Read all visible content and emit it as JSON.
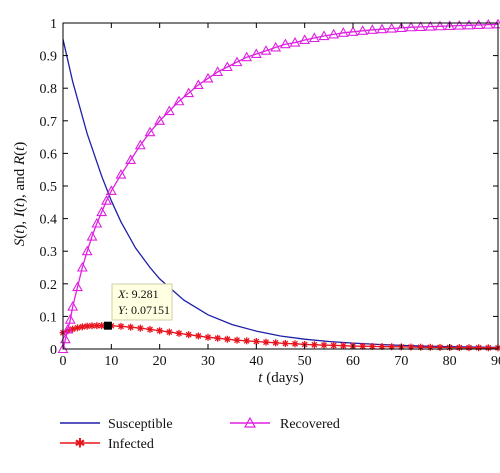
{
  "chart_data": {
    "type": "line",
    "xlabel": {
      "var": "t",
      "rest": " (days)"
    },
    "ylabel": {
      "parts": [
        "S",
        "(",
        "t",
        "), ",
        "I",
        "(",
        "t",
        "), and ",
        "R",
        "(",
        "t",
        ")"
      ]
    },
    "xlim": [
      0,
      90
    ],
    "ylim": [
      0,
      1
    ],
    "xticks": [
      0,
      10,
      20,
      30,
      40,
      50,
      60,
      70,
      80,
      90
    ],
    "yticks": [
      0,
      0.1,
      0.2,
      0.3,
      0.4,
      0.5,
      0.6,
      0.7,
      0.8,
      0.9,
      1
    ],
    "ytick_labels": [
      "0",
      "0.1",
      "0.2",
      "0.3",
      "0.4",
      "0.5",
      "0.6",
      "0.7",
      "0.8",
      "0.9",
      "1"
    ],
    "grid": false,
    "legend_position": "bottom, below plot",
    "series": [
      {
        "name": "Susceptible",
        "color": "#1f1fa8",
        "marker": "none",
        "x": [
          0,
          2,
          5,
          8,
          10,
          12,
          15,
          18,
          20,
          25,
          30,
          35,
          40,
          45,
          50,
          55,
          60,
          65,
          70,
          75,
          80,
          85,
          90
        ],
        "y": [
          0.95,
          0.82,
          0.66,
          0.53,
          0.455,
          0.39,
          0.31,
          0.25,
          0.215,
          0.15,
          0.105,
          0.075,
          0.055,
          0.04,
          0.03,
          0.023,
          0.018,
          0.014,
          0.011,
          0.009,
          0.007,
          0.006,
          0.005
        ]
      },
      {
        "name": "Infected",
        "color": "#e8141e",
        "marker": "star",
        "x": [
          0,
          1,
          2,
          3,
          4,
          5,
          6,
          7,
          8,
          9.281,
          10,
          12,
          14,
          16,
          18,
          20,
          22,
          24,
          26,
          28,
          30,
          32,
          34,
          36,
          38,
          40,
          42,
          44,
          46,
          48,
          50,
          52,
          54,
          56,
          58,
          60,
          62,
          64,
          66,
          68,
          70,
          72,
          74,
          76,
          78,
          80,
          82,
          84,
          86,
          88,
          90
        ],
        "y": [
          0.05,
          0.056,
          0.061,
          0.065,
          0.068,
          0.07,
          0.0712,
          0.0716,
          0.0716,
          0.07151,
          0.071,
          0.0695,
          0.067,
          0.064,
          0.06,
          0.056,
          0.052,
          0.048,
          0.044,
          0.04,
          0.036,
          0.033,
          0.03,
          0.027,
          0.025,
          0.023,
          0.021,
          0.019,
          0.017,
          0.016,
          0.014,
          0.013,
          0.012,
          0.011,
          0.01,
          0.009,
          0.0085,
          0.008,
          0.0075,
          0.007,
          0.0065,
          0.006,
          0.0056,
          0.0053,
          0.005,
          0.0047,
          0.0044,
          0.0041,
          0.0039,
          0.0037,
          0.0035
        ]
      },
      {
        "name": "Recovered",
        "color": "#e020e0",
        "marker": "triangle",
        "x": [
          0,
          0.5,
          1,
          1.5,
          2,
          3,
          4,
          5,
          6,
          7,
          8,
          9,
          10,
          12,
          14,
          16,
          18,
          20,
          22,
          24,
          26,
          28,
          30,
          32,
          34,
          36,
          38,
          40,
          42,
          44,
          46,
          48,
          50,
          52,
          54,
          56,
          58,
          60,
          62,
          64,
          66,
          68,
          70,
          72,
          74,
          76,
          78,
          80,
          82,
          84,
          86,
          88,
          90
        ],
        "y": [
          0,
          0.03,
          0.06,
          0.09,
          0.13,
          0.19,
          0.25,
          0.3,
          0.345,
          0.385,
          0.42,
          0.455,
          0.485,
          0.535,
          0.58,
          0.625,
          0.665,
          0.7,
          0.73,
          0.76,
          0.785,
          0.81,
          0.83,
          0.85,
          0.865,
          0.88,
          0.895,
          0.905,
          0.915,
          0.925,
          0.935,
          0.94,
          0.948,
          0.954,
          0.96,
          0.965,
          0.97,
          0.973,
          0.976,
          0.979,
          0.981,
          0.983,
          0.985,
          0.987,
          0.988,
          0.989,
          0.99,
          0.991,
          0.992,
          0.993,
          0.994,
          0.995,
          0.996
        ]
      }
    ],
    "annotation": {
      "x": 9.281,
      "y": 0.07151,
      "line1_var": "X",
      "line1_val": ": 9.281",
      "line2_var": "Y",
      "line2_val": ": 0.07151"
    }
  }
}
